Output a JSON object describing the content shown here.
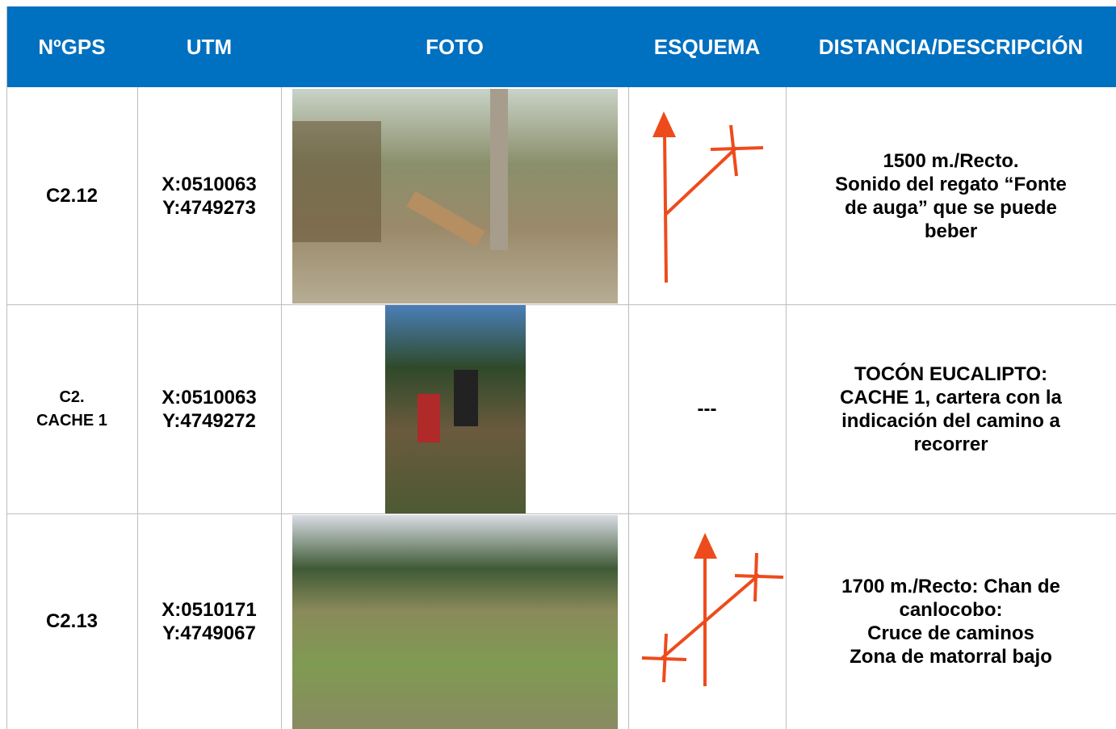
{
  "table": {
    "header": [
      "NºGPS",
      "UTM",
      "FOTO",
      "ESQUEMA",
      "DISTANCIA/DESCRIPCIÓN"
    ],
    "rows": [
      {
        "gps": [
          "C2.12"
        ],
        "utm": [
          "X:0510063",
          "Y:4749273"
        ],
        "description": [
          "1500 m./Recto.",
          "Sonido del regato “Fonte",
          "de auga” que se puede",
          "beber"
        ]
      },
      {
        "gps": [
          "C2.",
          "CACHE 1"
        ],
        "utm": [
          "X:0510063",
          "Y:4749272"
        ],
        "scheme": "---",
        "description": [
          "TOCÓN EUCALIPTO:",
          "CACHE 1, cartera con la",
          "indicación del camino a",
          "recorrer"
        ]
      },
      {
        "gps": [
          "C2.13"
        ],
        "utm": [
          "X:0510171",
          "Y:4749067"
        ],
        "description": [
          "1700 m./Recto: Chan de",
          "canlocobo:",
          "Cruce de caminos",
          "Zona de matorral bajo"
        ]
      }
    ]
  }
}
